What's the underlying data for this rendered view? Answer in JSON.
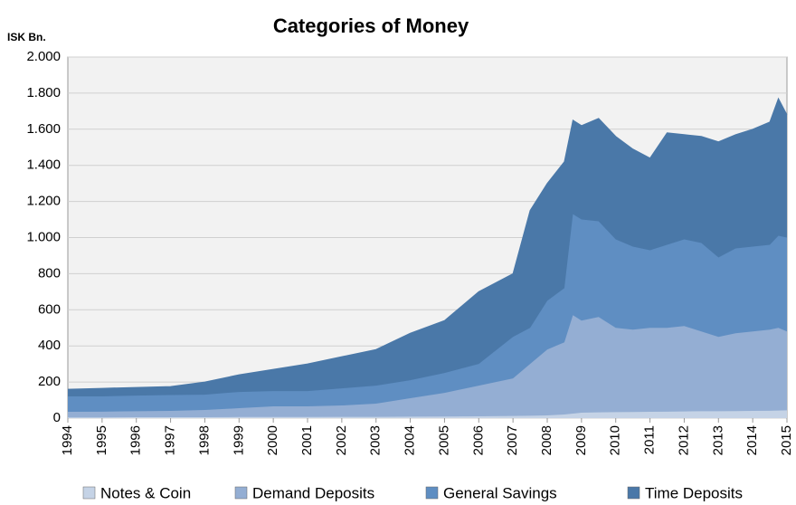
{
  "chart_data": {
    "type": "stacked_area",
    "title": "Categories of Money",
    "y_label": "ISK Bn.",
    "x": [
      1994,
      1995,
      1996,
      1997,
      1998,
      1999,
      2000,
      2001,
      2002,
      2003,
      2004,
      2005,
      2006,
      2007,
      2007.5,
      2008,
      2008.5,
      2008.75,
      2009,
      2009.5,
      2010,
      2010.5,
      2011,
      2011.5,
      2012,
      2012.5,
      2013,
      2013.5,
      2014,
      2014.5,
      2014.75,
      2015
    ],
    "series": [
      {
        "name": "Notes & Coin",
        "color": "#c5d3e6",
        "values": [
          4,
          4,
          5,
          5,
          5,
          6,
          6,
          6,
          7,
          7,
          8,
          9,
          10,
          12,
          13,
          15,
          20,
          25,
          30,
          32,
          33,
          34,
          35,
          36,
          37,
          38,
          38,
          39,
          40,
          41,
          42,
          43
        ]
      },
      {
        "name": "Demand Deposits",
        "color": "#94aed3",
        "values": [
          31,
          32,
          33,
          35,
          40,
          49,
          59,
          59,
          63,
          73,
          102,
          131,
          170,
          208,
          287,
          365,
          400,
          545,
          510,
          528,
          467,
          456,
          465,
          464,
          473,
          442,
          412,
          431,
          440,
          449,
          458,
          437
        ]
      },
      {
        "name": "General Savings",
        "color": "#5f8ec2",
        "values": [
          85,
          84,
          87,
          88,
          85,
          90,
          85,
          85,
          95,
          100,
          100,
          110,
          120,
          230,
          200,
          270,
          300,
          560,
          560,
          530,
          490,
          460,
          430,
          460,
          480,
          490,
          440,
          470,
          470,
          470,
          510,
          520
        ]
      },
      {
        "name": "Time Deposits",
        "color": "#4a78a8",
        "values": [
          40,
          45,
          45,
          47,
          70,
          95,
          120,
          150,
          175,
          200,
          260,
          290,
          400,
          350,
          650,
          650,
          700,
          520,
          520,
          570,
          570,
          540,
          510,
          620,
          580,
          590,
          640,
          630,
          650,
          680,
          760,
          680
        ]
      }
    ],
    "xlim": [
      1994,
      2015
    ],
    "xticks": [
      1994,
      1995,
      1996,
      1997,
      1998,
      1999,
      2000,
      2001,
      2002,
      2003,
      2004,
      2005,
      2006,
      2007,
      2008,
      2009,
      2010,
      2011,
      2012,
      2013,
      2014,
      2015
    ],
    "ylim": [
      0,
      2000
    ],
    "yticks": [
      0,
      200,
      400,
      600,
      800,
      {
        "value": 1000,
        "label": "1.000"
      },
      {
        "value": 1200,
        "label": "1.200"
      },
      {
        "value": 1400,
        "label": "1.400"
      },
      {
        "value": 1600,
        "label": "1.600"
      },
      {
        "value": 1800,
        "label": "1.800"
      },
      {
        "value": 2000,
        "label": "2.000"
      }
    ],
    "grid": true,
    "legend": "bottom"
  }
}
